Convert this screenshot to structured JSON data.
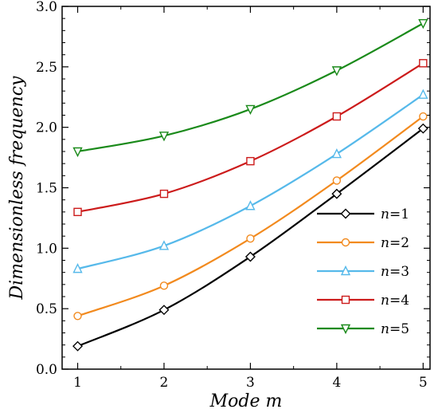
{
  "chart_data": {
    "type": "line",
    "title": "",
    "xlabel": "Mode m",
    "ylabel": "Dimensionless frequency",
    "x": [
      1,
      2,
      3,
      4,
      5
    ],
    "xlim": [
      0.82,
      5.08
    ],
    "ylim": [
      0.0,
      3.0
    ],
    "x_ticks": [
      "1",
      "2",
      "3",
      "4",
      "5"
    ],
    "y_ticks": [
      "0.0",
      "0.5",
      "1.0",
      "1.5",
      "2.0",
      "2.5",
      "3.0"
    ],
    "grid": false,
    "legend_position": "lower-right",
    "series": [
      {
        "name": "n=1",
        "var": "n",
        "val": "=1",
        "color": "#000000",
        "marker": "diamond",
        "values": [
          0.19,
          0.49,
          0.93,
          1.45,
          1.99
        ]
      },
      {
        "name": "n=2",
        "var": "n",
        "val": "=2",
        "color": "#f28a1e",
        "marker": "circle",
        "values": [
          0.44,
          0.69,
          1.08,
          1.56,
          2.09
        ]
      },
      {
        "name": "n=3",
        "var": "n",
        "val": "=3",
        "color": "#56b9ea",
        "marker": "triangle-up",
        "values": [
          0.83,
          1.02,
          1.35,
          1.78,
          2.27
        ]
      },
      {
        "name": "n=4",
        "var": "n",
        "val": "=4",
        "color": "#cc1b1b",
        "marker": "square",
        "values": [
          1.3,
          1.45,
          1.72,
          2.09,
          2.53
        ]
      },
      {
        "name": "n=5",
        "var": "n",
        "val": "=5",
        "color": "#1a8a1a",
        "marker": "triangle-down",
        "values": [
          1.8,
          1.93,
          2.15,
          2.47,
          2.86
        ]
      }
    ]
  }
}
